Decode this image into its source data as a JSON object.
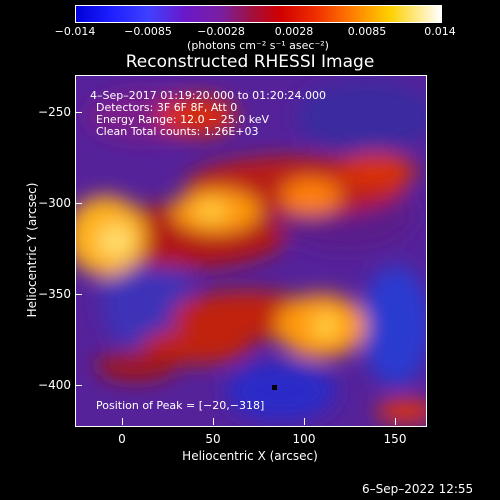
{
  "colorbar": {
    "ticks": [
      "−0.014",
      "−0.0085",
      "−0.0028",
      "0.0028",
      "0.0085",
      "0.014"
    ],
    "units": "(photons cm⁻² s⁻¹ asec⁻²)"
  },
  "title": "Reconstructed RHESSI Image",
  "annotations": {
    "time": "4–Sep–2017 01:19:20.000 to 01:20:24.000",
    "detectors": "Detectors: 3F 6F 8F, Att 0",
    "energy": "Energy Range: 12.0 − 25.0 keV",
    "clean": "Clean     Total counts: 1.26E+03",
    "peak": "Position of Peak = [−20,−318]"
  },
  "axes": {
    "xlabel": "Heliocentric X (arcsec)",
    "ylabel": "Heliocentric Y (arcsec)",
    "xticks": [
      "0",
      "50",
      "100",
      "150"
    ],
    "yticks": [
      "−250",
      "−300",
      "−350",
      "−400"
    ]
  },
  "timestamp": "6–Sep–2022 12:55"
}
